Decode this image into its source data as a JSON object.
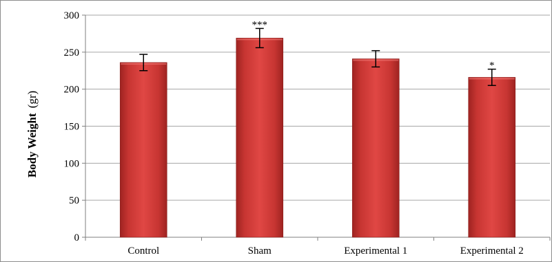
{
  "chart_data": {
    "type": "bar",
    "categories": [
      "Control",
      "Sham",
      "Experimental 1",
      "Experimental 2"
    ],
    "values": [
      236,
      269,
      241,
      216
    ],
    "errors": [
      11,
      13,
      11,
      11
    ],
    "annotations": [
      "",
      "***",
      "",
      "*"
    ],
    "ylabel_main": "Body Weight",
    "ylabel_unit": "(gr)",
    "ylim": [
      0,
      300
    ],
    "yticks": [
      0,
      50,
      100,
      150,
      200,
      250,
      300
    ],
    "grid": true,
    "bar_color": "#c0302e",
    "bar_color_light": "#e64b48"
  }
}
